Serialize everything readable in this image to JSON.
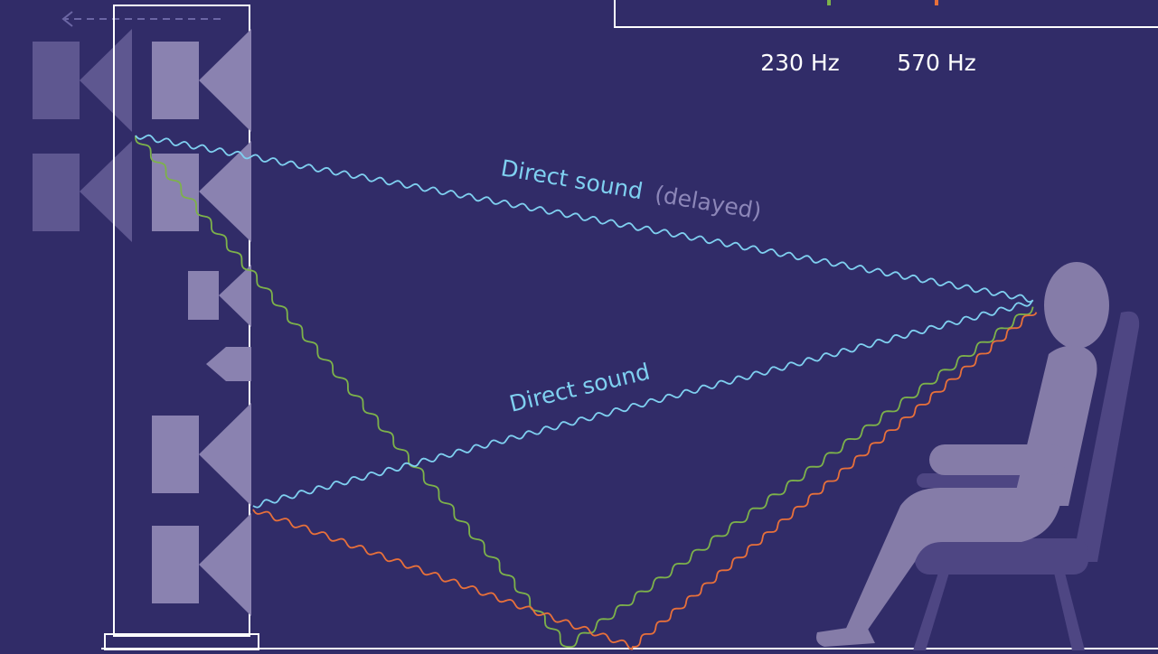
{
  "legend": {
    "freq_low": "230 Hz",
    "freq_high": "570 Hz",
    "marker_colors": [
      "#7db24a",
      "#e8703a"
    ]
  },
  "labels": {
    "direct_sound_delayed": "Direct sound",
    "delayed_suffix": "(delayed)",
    "direct_sound": "Direct sound"
  },
  "colors": {
    "background": "#312c68",
    "direct_wave": "#7fd0f0",
    "reflection_230": "#7db24a",
    "reflection_570": "#e8703a",
    "speaker_fill": "#8a82b0",
    "speaker_ghost": "#5e5790",
    "listener": "#857ca8",
    "chair": "#4e4683",
    "outline": "#ffffff",
    "delayed_text": "#8c86b8"
  },
  "icons": {
    "speaker": "speaker-driver-icon",
    "tweeter": "tweeter-icon",
    "listener": "seated-person-icon",
    "chair": "chair-icon",
    "arrow": "arrow-left-icon"
  }
}
